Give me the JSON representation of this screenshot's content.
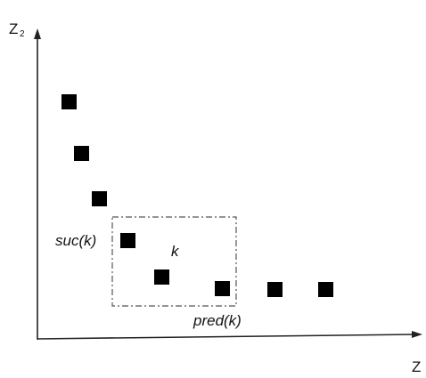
{
  "diagram": {
    "axes": {
      "y_label": "Z",
      "y_subscript": "2",
      "x_label": "Z",
      "x_subscript": ""
    },
    "annotations": {
      "successor": "suc(k)",
      "current": "k",
      "predecessor": "pred(k)"
    },
    "points": [
      {
        "id": "p1"
      },
      {
        "id": "p2"
      },
      {
        "id": "p3"
      },
      {
        "id": "suc"
      },
      {
        "id": "k"
      },
      {
        "id": "pred"
      },
      {
        "id": "p7"
      },
      {
        "id": "p8"
      }
    ]
  }
}
